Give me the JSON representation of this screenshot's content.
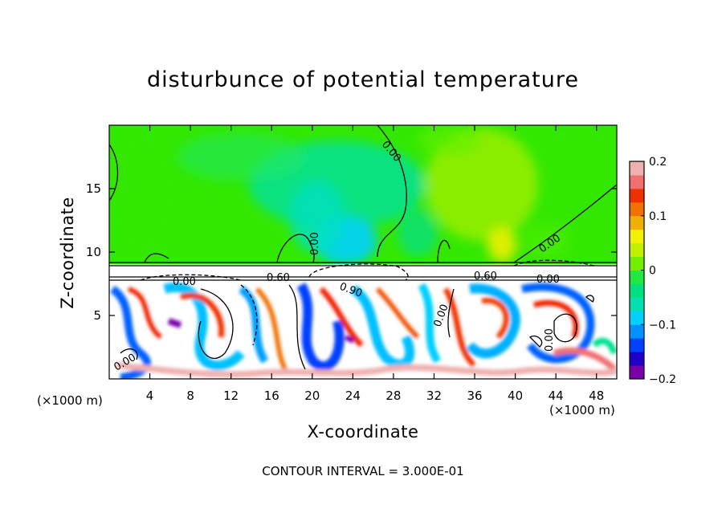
{
  "chart_data": {
    "type": "heatmap",
    "title": "disturbunce of potential temperature",
    "xlabel": "X-coordinate",
    "ylabel": "Z-coordinate",
    "x_unit": "(×1000 m)",
    "xlim": [
      0,
      50
    ],
    "ylim": [
      0,
      20
    ],
    "x_ticks": [
      4,
      8,
      12,
      16,
      20,
      24,
      28,
      32,
      36,
      40,
      44,
      48
    ],
    "x_tick_labels": [
      "4",
      "8",
      "12",
      "16",
      "20",
      "24",
      "28",
      "32",
      "36",
      "40",
      "44",
      "48"
    ],
    "y_ticks": [
      5,
      10,
      15
    ],
    "y_tick_labels": [
      "5",
      "10",
      "15"
    ],
    "colorbar": {
      "min": -0.2,
      "max": 0.2,
      "ticks": [
        0.2,
        0.1,
        0,
        -0.1,
        -0.2
      ],
      "tick_labels": [
        "0.2",
        "0.1",
        "0",
        "−0.1",
        "−0.2"
      ],
      "colors": [
        "#7a00aa",
        "#2000c8",
        "#0040ff",
        "#0090ff",
        "#00d0ff",
        "#00e0b0",
        "#00e080",
        "#20e840",
        "#70f000",
        "#c0f000",
        "#f0f000",
        "#f0b000",
        "#f07000",
        "#f03000",
        "#f07070",
        "#f0b0b0"
      ]
    },
    "contour_interval": "3.000E-01",
    "contour_labels": [
      "0.00",
      "0.00",
      "0.00",
      "0.00",
      "0.00",
      "0.60",
      "0.60",
      "0.90",
      "0.00",
      "0.00",
      "0.00",
      "0.00",
      "0.00"
    ]
  },
  "footnote": "CONTOUR INTERVAL = 3.000E-01"
}
